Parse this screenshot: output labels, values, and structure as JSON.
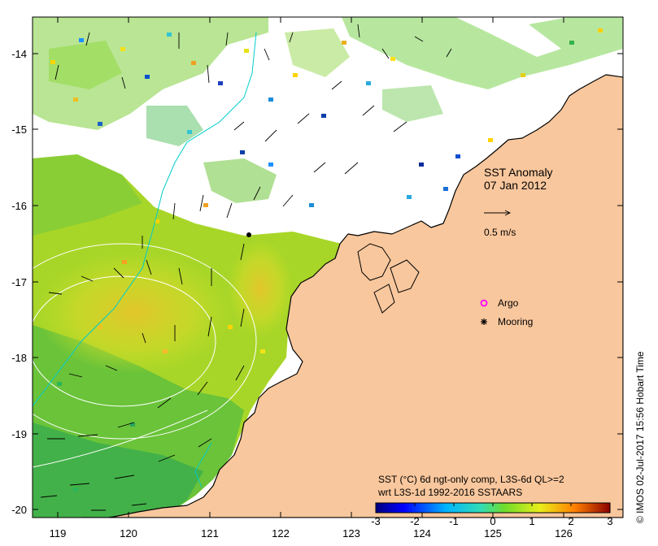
{
  "map": {
    "title": "SST Anomaly",
    "date": "07 Jan 2012",
    "scale_label": "0.5 m/s",
    "credit": "© IMOS 02-Jul-2017 15:56 Hobart Time",
    "x_ticks": [
      "119",
      "120",
      "121",
      "122",
      "123",
      "124",
      "125",
      "126"
    ],
    "y_ticks": [
      "-14",
      "-15",
      "-16",
      "-17",
      "-18",
      "-19",
      "-20"
    ],
    "lon_range": [
      118.65,
      126.75
    ],
    "lat_range": [
      -20.15,
      -13.55
    ]
  },
  "legend": {
    "items": [
      {
        "label": "Argo",
        "color": "#ff00ff",
        "marker": "circle-open"
      },
      {
        "label": "Mooring",
        "color": "#000000",
        "marker": "asterisk"
      }
    ]
  },
  "colorbar": {
    "caption_line1": "SST (°C) 6d ngt-only comp, L3S-6d QL>=2",
    "caption_line2": "wrt L3S-1d 1992-2016 SSTAARS",
    "ticks": [
      "-3",
      "-2",
      "-1",
      "0",
      "1",
      "2",
      "3"
    ],
    "range": [
      -3,
      3
    ]
  },
  "colors": {
    "land": "#f9c79d",
    "coast": "#000000",
    "contour": "#ffffff",
    "bathy": "#00cccc"
  },
  "mooring": {
    "lon": 121.6,
    "lat": -16.37
  }
}
